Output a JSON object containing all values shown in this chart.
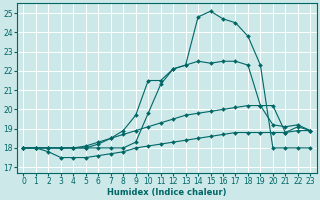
{
  "xlabel": "Humidex (Indice chaleur)",
  "bg_color": "#cce8e8",
  "line_color": "#006666",
  "grid_color": "#ffffff",
  "xlim": [
    -0.5,
    23.5
  ],
  "ylim": [
    16.7,
    25.5
  ],
  "yticks": [
    17,
    18,
    19,
    20,
    21,
    22,
    23,
    24,
    25
  ],
  "xticks": [
    0,
    1,
    2,
    3,
    4,
    5,
    6,
    7,
    8,
    9,
    10,
    11,
    12,
    13,
    14,
    15,
    16,
    17,
    18,
    19,
    20,
    21,
    22,
    23
  ],
  "lines": [
    {
      "x": [
        0,
        1,
        2,
        3,
        4,
        5,
        6,
        7,
        8,
        9,
        10,
        11,
        12,
        13,
        14,
        15,
        16,
        17,
        18,
        19,
        20,
        21,
        22,
        23
      ],
      "y": [
        18.0,
        18.0,
        18.0,
        18.0,
        18.0,
        18.0,
        18.0,
        18.0,
        18.0,
        18.3,
        19.8,
        21.3,
        22.1,
        22.3,
        24.8,
        25.1,
        24.7,
        24.5,
        23.8,
        22.3,
        18.0,
        18.0,
        18.0,
        18.0
      ]
    },
    {
      "x": [
        0,
        1,
        2,
        3,
        4,
        5,
        6,
        7,
        8,
        9,
        10,
        11,
        12,
        13,
        14,
        15,
        16,
        17,
        18,
        19,
        20,
        21,
        22,
        23
      ],
      "y": [
        18.0,
        18.0,
        18.0,
        18.0,
        18.0,
        18.0,
        18.2,
        18.5,
        18.9,
        19.7,
        21.5,
        21.5,
        22.1,
        22.3,
        22.5,
        22.4,
        22.5,
        22.5,
        22.3,
        20.2,
        19.2,
        19.1,
        19.2,
        18.9
      ]
    },
    {
      "x": [
        0,
        1,
        2,
        3,
        4,
        5,
        6,
        7,
        8,
        9,
        10,
        11,
        12,
        13,
        14,
        15,
        16,
        17,
        18,
        19,
        20,
        21,
        22,
        23
      ],
      "y": [
        18.0,
        18.0,
        18.0,
        18.0,
        18.0,
        18.1,
        18.3,
        18.5,
        18.7,
        18.9,
        19.1,
        19.3,
        19.5,
        19.7,
        19.8,
        19.9,
        20.0,
        20.1,
        20.2,
        20.2,
        20.2,
        18.8,
        19.1,
        18.9
      ]
    },
    {
      "x": [
        0,
        1,
        2,
        3,
        4,
        5,
        6,
        7,
        8,
        9,
        10,
        11,
        12,
        13,
        14,
        15,
        16,
        17,
        18,
        19,
        20,
        21,
        22,
        23
      ],
      "y": [
        18.0,
        18.0,
        17.8,
        17.5,
        17.5,
        17.5,
        17.6,
        17.7,
        17.8,
        18.0,
        18.1,
        18.2,
        18.3,
        18.4,
        18.5,
        18.6,
        18.7,
        18.8,
        18.8,
        18.8,
        18.8,
        18.8,
        18.9,
        18.9
      ]
    }
  ]
}
